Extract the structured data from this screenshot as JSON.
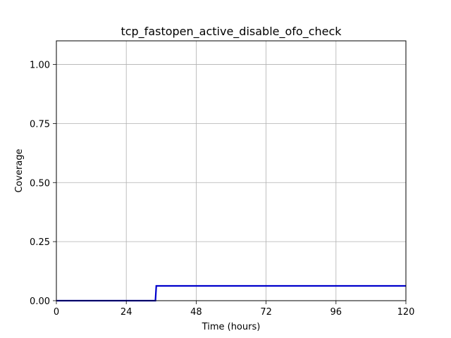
{
  "chart_data": {
    "type": "line",
    "title": "tcp_fastopen_active_disable_ofo_check",
    "xlabel": "Time (hours)",
    "ylabel": "Coverage",
    "xlim": [
      0,
      120
    ],
    "ylim": [
      0,
      1.1
    ],
    "xticks": [
      0,
      24,
      48,
      72,
      96,
      120
    ],
    "xtick_labels": [
      "0",
      "24",
      "48",
      "72",
      "96",
      "120"
    ],
    "yticks": [
      0.0,
      0.25,
      0.5,
      0.75,
      1.0
    ],
    "ytick_labels": [
      "0.00",
      "0.25",
      "0.50",
      "0.75",
      "1.00"
    ],
    "grid": true,
    "series": [
      {
        "color": "#0000cc",
        "x": [
          0,
          34,
          34.3,
          120
        ],
        "y": [
          0,
          0,
          0.0625,
          0.0625
        ]
      }
    ]
  }
}
